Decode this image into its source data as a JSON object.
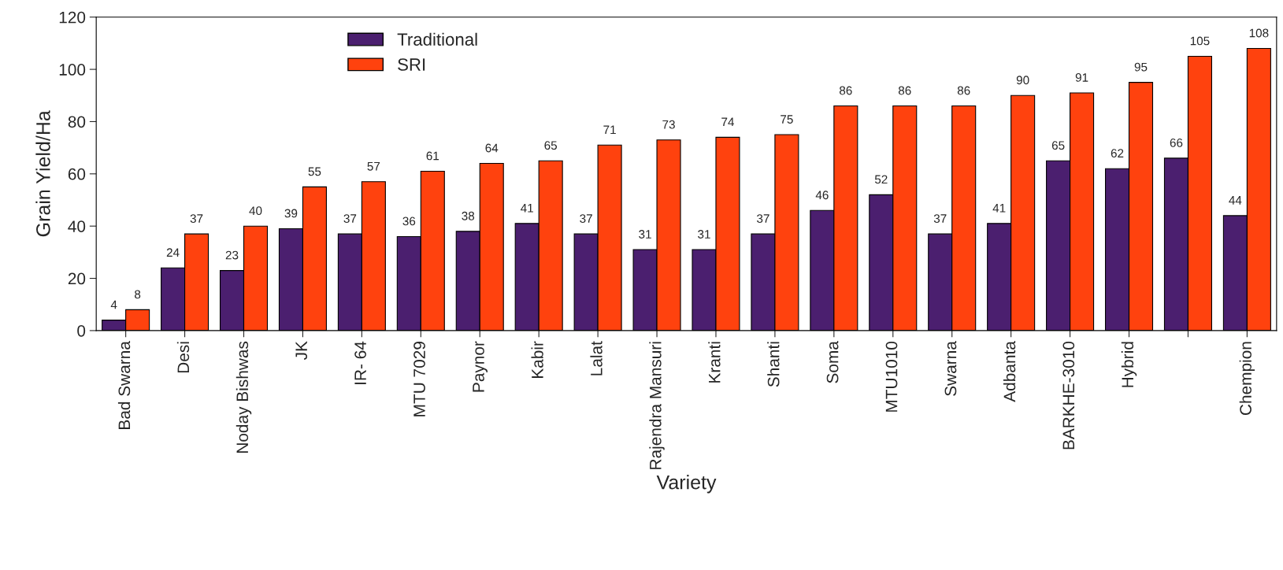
{
  "chart_data": {
    "type": "bar",
    "xlabel": "Variety",
    "ylabel": "Grain Yield/Ha",
    "categories": [
      "Bad Swarna",
      "Desi",
      "Noday Bishwas",
      "JK",
      "IR- 64",
      "MTU 7029",
      "Paynor",
      "Kabir",
      "Lalat",
      "Rajendra Mansuri",
      "Kranti",
      "Shanti",
      "Soma",
      "MTU1010",
      "Swarna",
      "Adbanta",
      "BARKHE-3010",
      "Hybrid",
      null,
      "Chempion"
    ],
    "series": [
      {
        "name": "Traditional",
        "color": "#4b1f6f",
        "values": [
          4,
          24,
          23,
          39,
          37,
          36,
          38,
          41,
          37,
          31,
          31,
          37,
          46,
          52,
          37,
          41,
          65,
          62,
          66,
          44
        ]
      },
      {
        "name": "SRI",
        "color": "#ff420e",
        "values": [
          8,
          37,
          40,
          55,
          57,
          61,
          64,
          65,
          71,
          73,
          74,
          75,
          86,
          86,
          86,
          90,
          91,
          95,
          105,
          108
        ]
      }
    ],
    "ylim": [
      0,
      120
    ],
    "yticks": [
      0,
      20,
      40,
      60,
      80,
      100,
      120
    ],
    "grid": false,
    "legend": "top left",
    "data_labels": true
  }
}
